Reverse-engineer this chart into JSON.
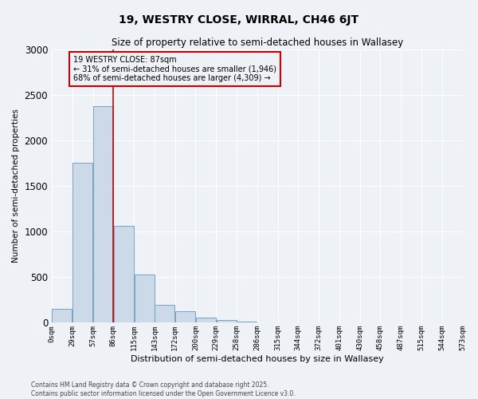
{
  "title": "19, WESTRY CLOSE, WIRRAL, CH46 6JT",
  "subtitle": "Size of property relative to semi-detached houses in Wallasey",
  "xlabel": "Distribution of semi-detached houses by size in Wallasey",
  "ylabel": "Number of semi-detached properties",
  "bar_color": "#ccd9e8",
  "bar_edge_color": "#6699bb",
  "background_color": "#eef2f7",
  "grid_color": "#ffffff",
  "bin_labels": [
    "0sqm",
    "29sqm",
    "57sqm",
    "86sqm",
    "115sqm",
    "143sqm",
    "172sqm",
    "200sqm",
    "229sqm",
    "258sqm",
    "286sqm",
    "315sqm",
    "344sqm",
    "372sqm",
    "401sqm",
    "430sqm",
    "458sqm",
    "487sqm",
    "515sqm",
    "544sqm",
    "573sqm"
  ],
  "bar_heights": [
    150,
    1750,
    2380,
    1060,
    530,
    200,
    130,
    60,
    30,
    10,
    5,
    3,
    2,
    1,
    0,
    0,
    0,
    0,
    0,
    0
  ],
  "ylim": [
    0,
    3000
  ],
  "yticks": [
    0,
    500,
    1000,
    1500,
    2000,
    2500,
    3000
  ],
  "property_bin_index": 3,
  "annotation_title": "19 WESTRY CLOSE: 87sqm",
  "annotation_line1": "← 31% of semi-detached houses are smaller (1,946)",
  "annotation_line2": "68% of semi-detached houses are larger (4,309) →",
  "annotation_color": "#cc0000",
  "footer_line1": "Contains HM Land Registry data © Crown copyright and database right 2025.",
  "footer_line2": "Contains public sector information licensed under the Open Government Licence v3.0."
}
